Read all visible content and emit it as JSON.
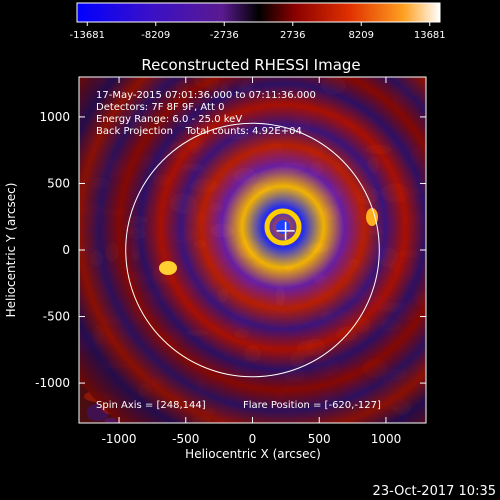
{
  "chart_data": {
    "type": "heatmap",
    "title": "Reconstructed RHESSI Image",
    "xlabel": "Heliocentric X (arcsec)",
    "ylabel": "Heliocentric Y (arcsec)",
    "xlim": [
      -1300,
      1300
    ],
    "ylim": [
      -1300,
      1300
    ],
    "xticks": [
      "-1000",
      "-500",
      "0",
      "500",
      "1000"
    ],
    "yticks": [
      "-1000",
      "-500",
      "0",
      "500",
      "1000"
    ],
    "colorbar": {
      "ticks": [
        "-13681",
        "-8209",
        "-2736",
        "2736",
        "8209",
        "13681"
      ],
      "range": [
        -13681,
        13681
      ]
    },
    "annotations": [
      "17-May-2015 07:01:36.000 to 07:11:36.000",
      "Detectors: 7F 8F 9F, Att 0",
      "Energy Range: 6.0 - 25.0 keV",
      "Back Projection    Total counts: 4.92E+04"
    ],
    "spin_axis_text": "Spin Axis = [248,144]",
    "flare_position_text": "Flare Position = [-620,-127]",
    "source_center": [
      248,
      144
    ],
    "solar_limb_radius": 950,
    "timestamp": "23-Oct-2017 10:35"
  }
}
